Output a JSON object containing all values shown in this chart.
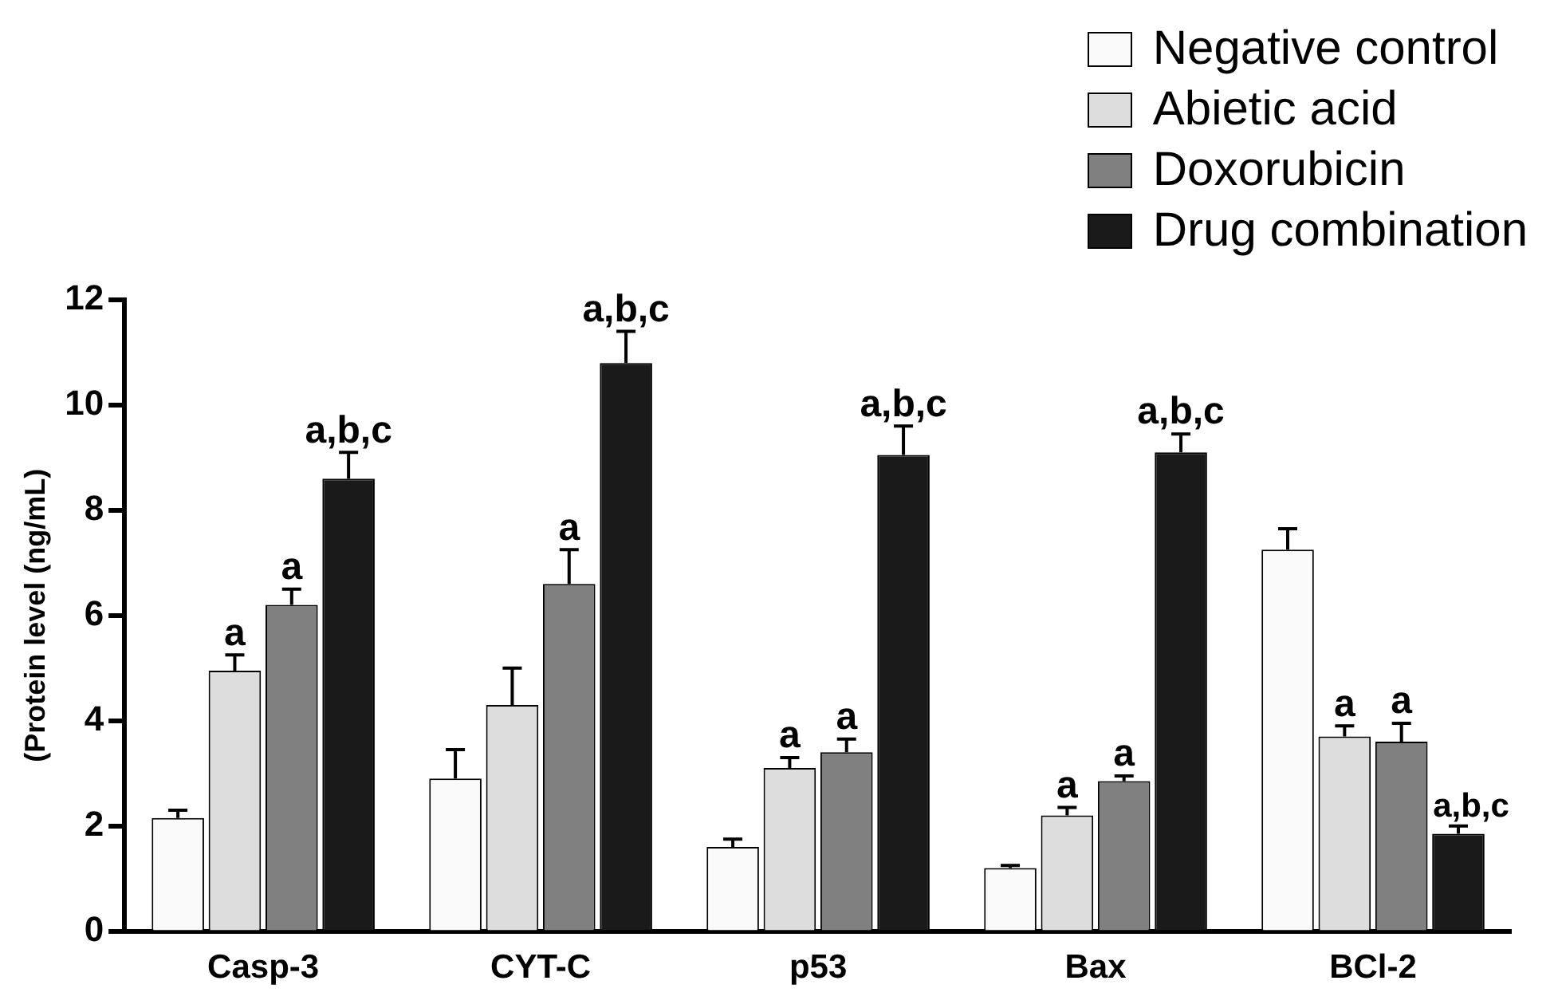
{
  "chart_data": {
    "type": "bar",
    "ylabel": "(Protein level (ng/mL)",
    "categories": [
      "Casp-3",
      "CYT-C",
      "p53",
      "Bax",
      "BCl-2"
    ],
    "series": [
      {
        "name": "Negative control",
        "color": "#fafafa",
        "values": [
          2.15,
          2.9,
          1.6,
          1.2,
          7.25
        ],
        "errors": [
          0.15,
          0.55,
          0.15,
          0.05,
          0.4
        ]
      },
      {
        "name": "Abietic acid",
        "color": "#dddddd",
        "values": [
          4.95,
          4.3,
          3.1,
          2.2,
          3.7
        ],
        "errors": [
          0.3,
          0.7,
          0.2,
          0.15,
          0.2
        ]
      },
      {
        "name": "Doxorubicin",
        "color": "#808080",
        "values": [
          6.2,
          6.6,
          3.4,
          2.85,
          3.6
        ],
        "errors": [
          0.3,
          0.65,
          0.25,
          0.1,
          0.35
        ]
      },
      {
        "name": "Drug combination",
        "color": "#1a1a1a",
        "values": [
          8.6,
          10.8,
          9.05,
          9.1,
          1.85
        ],
        "errors": [
          0.5,
          0.6,
          0.55,
          0.35,
          0.15
        ]
      }
    ],
    "ylim": [
      0,
      12
    ],
    "yticks": [
      0,
      2,
      4,
      6,
      8,
      10,
      12
    ],
    "grid": false,
    "legend": "top right",
    "annotations": [
      {
        "text": "a",
        "x": "Casp-3",
        "y": 4.95
      },
      {
        "text": "a",
        "x": "Casp-3",
        "y": 6.2
      },
      "a,b,c",
      {
        "text": "a",
        "x": "CYT-C",
        "y": 6.6
      },
      "a,b,c",
      {
        "text": "a",
        "x": "p53",
        "y": 3.1
      },
      {
        "text": "a",
        "x": "p53",
        "y": 3.4
      },
      "a,b,c",
      {
        "text": "a",
        "x": "Bax",
        "y": 2.2
      },
      {
        "text": "a",
        "x": "Bax",
        "y": 2.85
      },
      "a,b,c",
      {
        "text": "a",
        "x": "BCl-2",
        "y": 3.7
      },
      {
        "text": "a",
        "x": "BCl-2",
        "y": 3.6
      },
      {
        "text": "a,b,c",
        "x": "BCl-2",
        "y": 1.85
      }
    ]
  }
}
